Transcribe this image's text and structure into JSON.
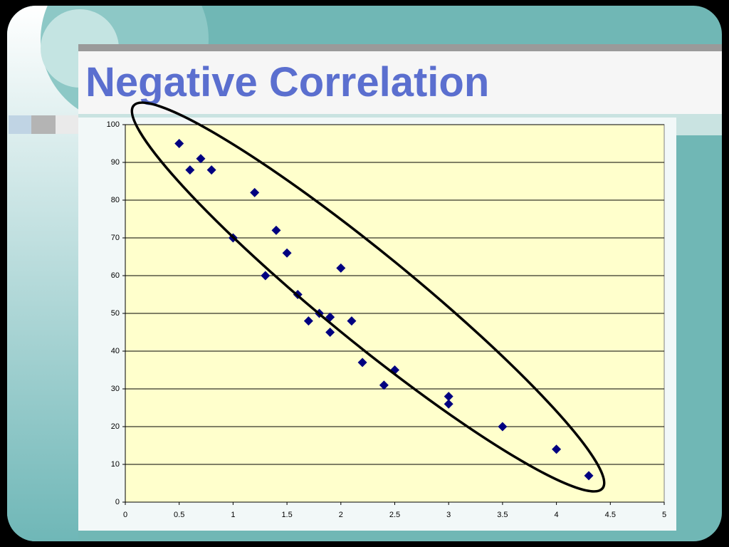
{
  "chart_data": {
    "type": "scatter",
    "title": "Negative Correlation",
    "x": [
      0.5,
      0.6,
      0.7,
      0.8,
      1.0,
      1.2,
      1.3,
      1.4,
      1.5,
      1.6,
      1.7,
      1.8,
      1.9,
      1.9,
      2.0,
      2.1,
      2.2,
      2.4,
      2.5,
      3.0,
      3.0,
      3.5,
      4.0,
      4.3
    ],
    "values": [
      95,
      88,
      91,
      88,
      70,
      82,
      60,
      72,
      66,
      55,
      48,
      50,
      49,
      45,
      62,
      48,
      37,
      31,
      35,
      28,
      26,
      20,
      14,
      7
    ],
    "color": "#000080",
    "xlim": [
      0,
      5
    ],
    "xticks": [
      0,
      0.5,
      1,
      1.5,
      2,
      2.5,
      3,
      3.5,
      4,
      4.5,
      5
    ],
    "ylim": [
      0,
      100
    ],
    "yticks": [
      0,
      10,
      20,
      30,
      40,
      50,
      60,
      70,
      80,
      90,
      100
    ],
    "grid": true
  }
}
